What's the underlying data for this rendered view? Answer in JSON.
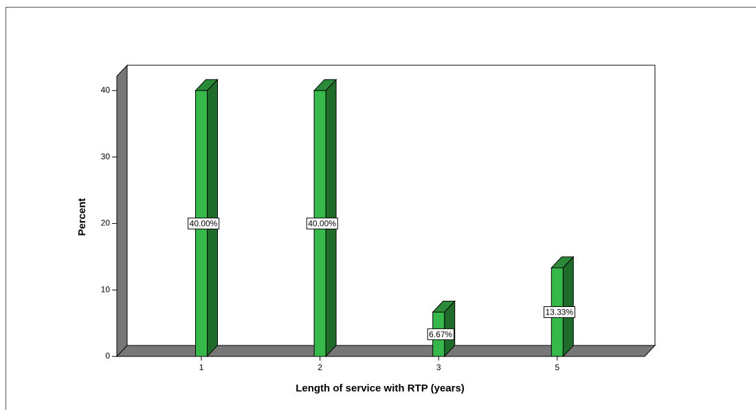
{
  "chart_data": {
    "type": "bar3d",
    "x_label": "Length of service with RTP (years)",
    "y_label": "Percent",
    "categories": [
      "1",
      "2",
      "3",
      "5"
    ],
    "values": [
      40,
      40,
      6.67,
      13.33
    ],
    "value_labels": [
      "40.00%",
      "40.00%",
      "6.67%",
      "13.33%"
    ],
    "color": "#36b94a",
    "ylim": [
      0,
      43.6
    ],
    "yticks": [
      0,
      10,
      20,
      30,
      40
    ]
  }
}
